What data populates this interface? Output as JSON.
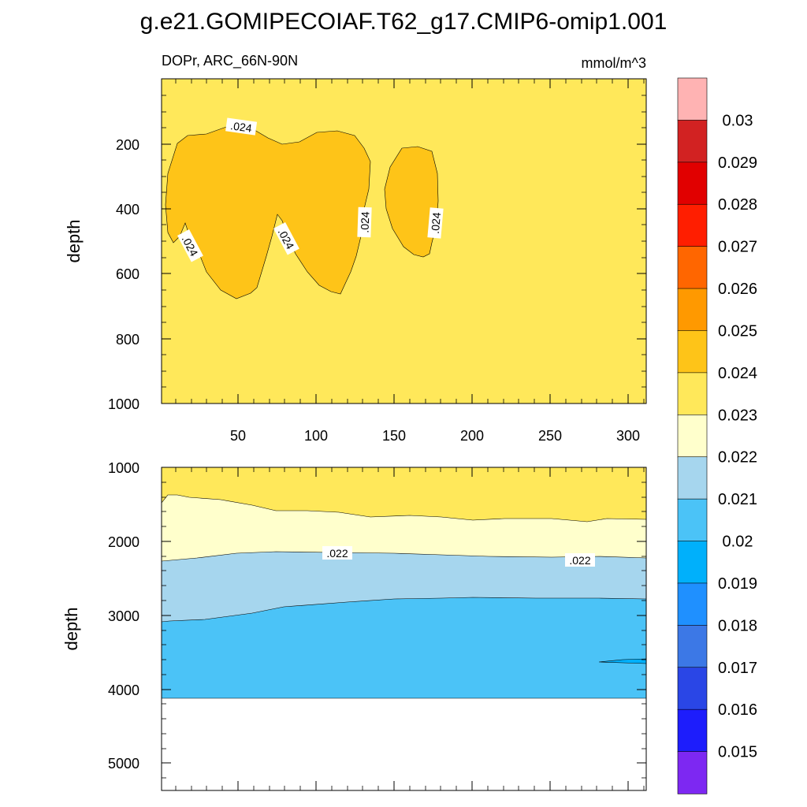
{
  "title": "g.e21.GOMIPECOIAF.T62_g17.CMIP6-omip1.001",
  "chart_data": [
    {
      "type": "contour",
      "panel": "upper",
      "title_left": "DOPr, ARC_66N-90N",
      "title_right": "mmol/m^3",
      "ylabel": "depth",
      "xlabel": "",
      "xlim": [
        1,
        312
      ],
      "ylim": [
        1000,
        0
      ],
      "xticks": [
        "50",
        "100",
        "150",
        "200",
        "250",
        "300"
      ],
      "yticks": [
        "200",
        "400",
        "600",
        "800",
        "1000"
      ],
      "background_level": "0.023-0.024",
      "regions": [
        {
          "level": "0.024-0.025",
          "x_range": [
            3,
            135
          ],
          "depth_range": [
            160,
            680
          ]
        },
        {
          "level": "0.024-0.025",
          "x_range": [
            143,
            178
          ],
          "depth_range": [
            210,
            550
          ]
        }
      ],
      "contour_labels": [
        ".024",
        ".024",
        ".024",
        ".024",
        ".024"
      ]
    },
    {
      "type": "contour",
      "panel": "lower",
      "ylabel": "depth",
      "xlim": [
        1,
        312
      ],
      "ylim": [
        5350,
        1000
      ],
      "yticks": [
        "1000",
        "2000",
        "3000",
        "4000",
        "5000"
      ],
      "bands": [
        {
          "level": "0.023-0.024",
          "depth_range": [
            1000,
            1650
          ]
        },
        {
          "level": "0.022-0.023",
          "depth_range": [
            1650,
            2200
          ]
        },
        {
          "level": "0.021-0.022",
          "depth_range": [
            2200,
            2900
          ]
        },
        {
          "level": "0.020-0.021",
          "depth_range": [
            2900,
            4120
          ]
        }
      ],
      "no_data_below": 4120,
      "contour_labels": [
        ".022",
        ".022"
      ]
    }
  ],
  "colorbar": {
    "labels": [
      "0.03",
      "0.029",
      "0.028",
      "0.027",
      "0.026",
      "0.025",
      "0.024",
      "0.023",
      "0.022",
      "0.021",
      "0.02",
      "0.019",
      "0.018",
      "0.017",
      "0.016",
      "0.015"
    ],
    "colors": [
      "#ffb3b3",
      "#d22222",
      "#e10000",
      "#ff1e00",
      "#ff6600",
      "#ff9900",
      "#fec418",
      "#ffe85a",
      "#ffffcc",
      "#a6d6ee",
      "#4bc3f7",
      "#00b0fb",
      "#1f90ff",
      "#3c78e6",
      "#2a46e6",
      "#1d1dfc",
      "#7d28f2"
    ]
  }
}
